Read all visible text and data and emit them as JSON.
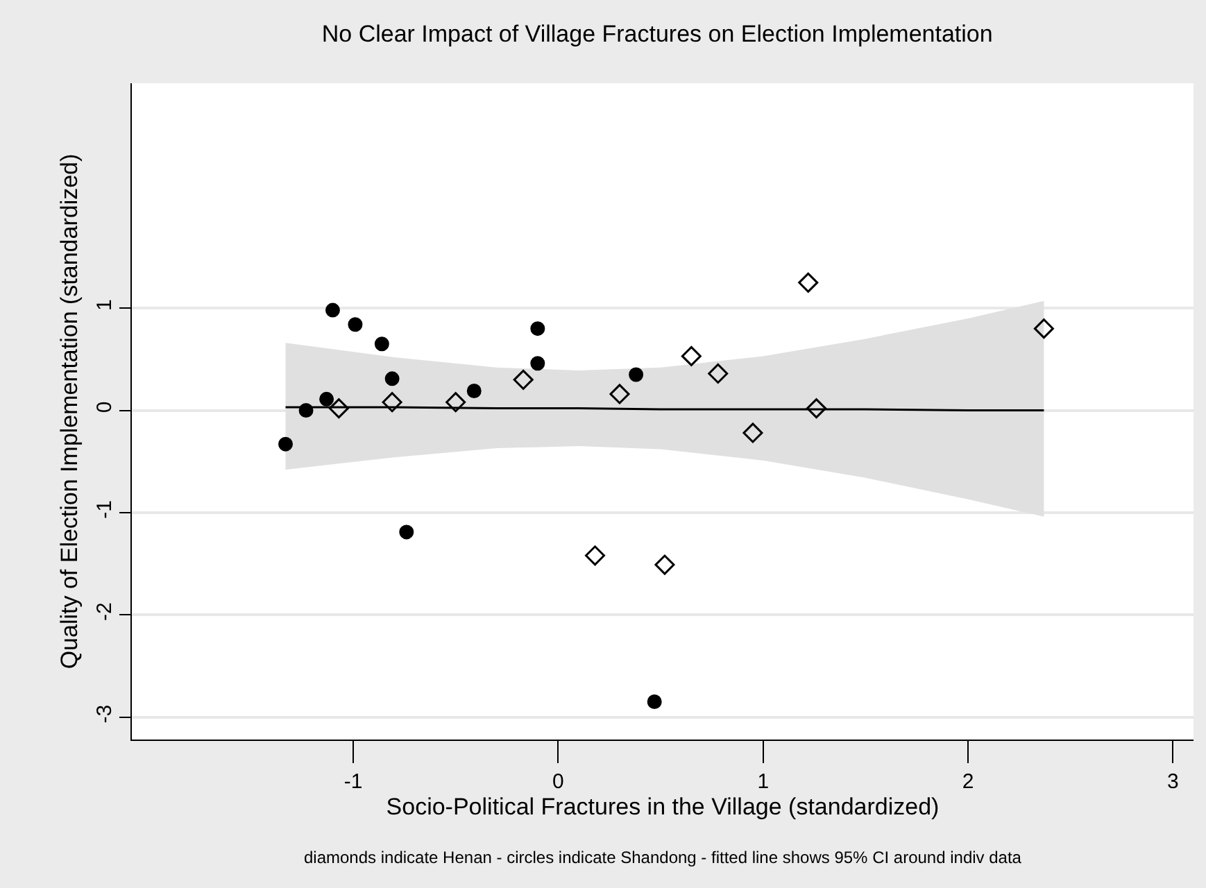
{
  "chart_data": {
    "type": "scatter",
    "title": "No Clear Impact of Village Fractures on Election Implementation",
    "xlabel": "Socio-Political Fractures in the Village (standardized)",
    "ylabel": "Quality of Election Implementation (standardized)",
    "annotations": [
      "diamonds indicate Henan - circles indicate Shandong - fitted line shows 95% CI around indiv data"
    ],
    "xlim": [
      -2.08,
      3.1
    ],
    "ylim": [
      -3.22,
      3.2
    ],
    "xticks": [
      -1,
      0,
      1,
      2,
      3
    ],
    "yticks": [
      -3,
      -2,
      -1,
      0,
      1
    ],
    "grid": "y",
    "series": [
      {
        "type": "line",
        "color": "#000000",
        "marker": "none",
        "line_style": "solid",
        "x": [
          -1.33,
          -0.8,
          -0.3,
          0.1,
          0.5,
          1.0,
          1.5,
          2.0,
          2.37
        ],
        "values": [
          0.03,
          0.03,
          0.02,
          0.02,
          0.01,
          0.01,
          0.01,
          0.0,
          0.0
        ],
        "lower": [
          -0.58,
          -0.46,
          -0.37,
          -0.35,
          -0.38,
          -0.49,
          -0.66,
          -0.87,
          -1.04
        ],
        "upper": [
          0.66,
          0.52,
          0.42,
          0.39,
          0.42,
          0.53,
          0.7,
          0.9,
          1.07
        ]
      },
      {
        "color": "#000000",
        "marker": "circle",
        "x": [
          -1.33,
          -1.23,
          -1.13,
          -1.1,
          -0.99,
          -0.86,
          -0.81,
          -0.74,
          -0.41,
          -0.1,
          -0.1,
          0.38,
          0.47
        ],
        "values": [
          -0.33,
          0.0,
          0.11,
          0.98,
          0.84,
          0.65,
          0.31,
          -1.19,
          0.19,
          0.8,
          0.46,
          0.35,
          -2.85
        ]
      },
      {
        "color": "#000000",
        "marker": "diamond",
        "x": [
          -1.07,
          -0.81,
          -0.5,
          -0.17,
          0.3,
          0.65,
          0.78,
          0.18,
          0.52,
          0.95,
          1.22,
          1.26,
          2.37
        ],
        "values": [
          0.02,
          0.08,
          0.08,
          0.3,
          0.16,
          0.53,
          0.36,
          -1.42,
          -1.51,
          -0.22,
          1.25,
          0.02,
          0.8
        ]
      }
    ]
  }
}
